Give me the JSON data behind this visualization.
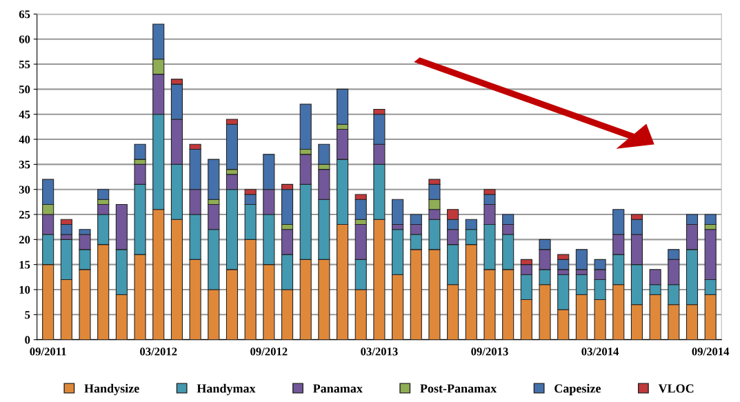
{
  "chart_data": {
    "type": "bar",
    "stacked": true,
    "categories": [
      "09/2011",
      null,
      null,
      null,
      null,
      null,
      "03/2012",
      null,
      null,
      null,
      null,
      null,
      "09/2012",
      null,
      null,
      null,
      null,
      null,
      "03/2013",
      null,
      null,
      null,
      null,
      null,
      "09/2013",
      null,
      null,
      null,
      null,
      null,
      "03/2014",
      null,
      null,
      null,
      null,
      null,
      "09/2014"
    ],
    "series": [
      {
        "name": "Handysize",
        "color": "#e0883a",
        "values": [
          15,
          12,
          14,
          19,
          9,
          17,
          26,
          24,
          16,
          10,
          14,
          20,
          15,
          10,
          16,
          16,
          23,
          10,
          24,
          13,
          18,
          18,
          11,
          19,
          14,
          14,
          8,
          11,
          6,
          9,
          8,
          11,
          7,
          9,
          7,
          7,
          9
        ]
      },
      {
        "name": "Handymax",
        "color": "#4399b0",
        "values": [
          6,
          8,
          4,
          6,
          9,
          14,
          19,
          11,
          9,
          12,
          16,
          7,
          10,
          7,
          15,
          12,
          13,
          6,
          11,
          9,
          3,
          6,
          8,
          3,
          9,
          7,
          5,
          3,
          7,
          4,
          4,
          6,
          8,
          2,
          4,
          11,
          3
        ]
      },
      {
        "name": "Panamax",
        "color": "#72589a",
        "values": [
          4,
          1,
          3,
          2,
          9,
          4,
          8,
          9,
          5,
          5,
          3,
          0,
          5,
          5,
          6,
          6,
          6,
          7,
          4,
          1,
          2,
          2,
          3,
          0,
          4,
          2,
          2,
          4,
          1,
          1,
          2,
          4,
          6,
          3,
          5,
          5,
          10
        ]
      },
      {
        "name": "Post-Panamax",
        "color": "#8fad55",
        "values": [
          2,
          0,
          0,
          1,
          0,
          1,
          3,
          0,
          0,
          1,
          1,
          0,
          0,
          1,
          1,
          1,
          1,
          1,
          0,
          0,
          0,
          2,
          0,
          0,
          0,
          0,
          0,
          0,
          0,
          0,
          0,
          0,
          0,
          0,
          0,
          0,
          1
        ]
      },
      {
        "name": "Capesize",
        "color": "#4471ab",
        "values": [
          5,
          2,
          1,
          2,
          0,
          3,
          7,
          7,
          8,
          8,
          9,
          2,
          7,
          7,
          9,
          4,
          7,
          4,
          6,
          5,
          2,
          3,
          2,
          2,
          2,
          2,
          0,
          2,
          2,
          4,
          2,
          5,
          3,
          0,
          2,
          2,
          2
        ]
      },
      {
        "name": "VLOC",
        "color": "#c0393b",
        "values": [
          0,
          1,
          0,
          0,
          0,
          0,
          0,
          1,
          1,
          0,
          1,
          1,
          0,
          1,
          0,
          0,
          0,
          1,
          1,
          0,
          0,
          1,
          2,
          0,
          1,
          0,
          1,
          0,
          1,
          0,
          0,
          0,
          1,
          0,
          0,
          0,
          0
        ]
      }
    ],
    "ylim": [
      0,
      65
    ],
    "yticks": [
      0,
      5,
      10,
      15,
      20,
      25,
      30,
      35,
      40,
      45,
      50,
      55,
      60,
      65
    ],
    "grid": "y",
    "legend": "bottom"
  }
}
